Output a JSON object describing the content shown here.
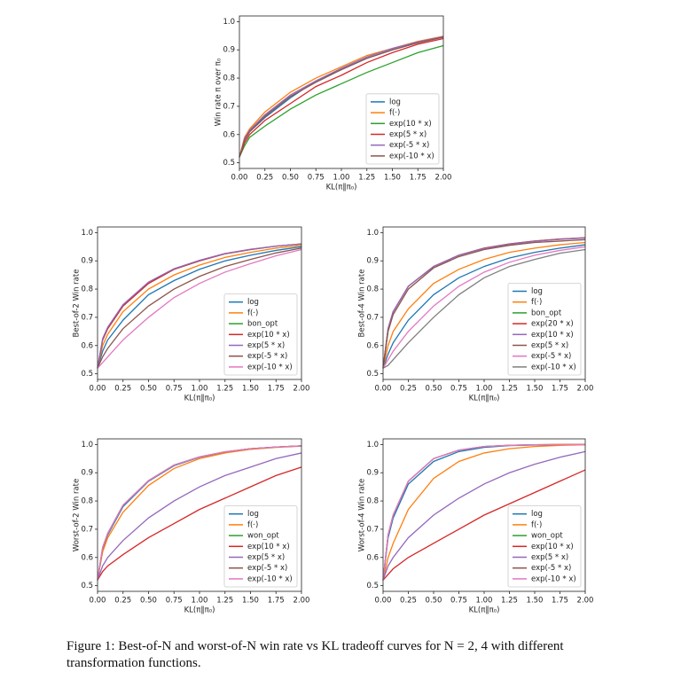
{
  "chart_data": [
    {
      "type": "line",
      "ylabel": "Win rate π over π₀",
      "xlabel": "KL(π‖π₀)",
      "x": [
        0,
        0.05,
        0.1,
        0.25,
        0.5,
        0.75,
        1.0,
        1.25,
        1.5,
        1.75,
        2.0
      ],
      "xlim": [
        0,
        2
      ],
      "ylim": [
        0.48,
        1.02
      ],
      "xticks": [
        {
          "value": 0,
          "label": "0.00"
        },
        {
          "value": 0.25,
          "label": "0.25"
        },
        {
          "value": 0.5,
          "label": "0.50"
        },
        {
          "value": 0.75,
          "label": "0.75"
        },
        {
          "value": 1,
          "label": "1.00"
        },
        {
          "value": 1.25,
          "label": "1.25"
        },
        {
          "value": 1.5,
          "label": "1.50"
        },
        {
          "value": 1.75,
          "label": "1.75"
        },
        {
          "value": 2,
          "label": "2.00"
        }
      ],
      "yticks": [
        0.5,
        0.6,
        0.7,
        0.8,
        0.9,
        {
          "value": 1,
          "label": "1.0"
        }
      ],
      "legend": "lower right",
      "series": [
        {
          "name": "log",
          "color": "#1f77b4",
          "values": [
            0.52,
            0.58,
            0.61,
            0.66,
            0.73,
            0.79,
            0.83,
            0.87,
            0.9,
            0.925,
            0.945
          ]
        },
        {
          "name": "f(·)",
          "color": "#ff7f0e",
          "values": [
            0.52,
            0.59,
            0.62,
            0.68,
            0.75,
            0.8,
            0.84,
            0.88,
            0.905,
            0.93,
            0.948
          ]
        },
        {
          "name": "exp(10 * x)",
          "color": "#2ca02c",
          "values": [
            0.52,
            0.56,
            0.59,
            0.63,
            0.69,
            0.74,
            0.78,
            0.82,
            0.855,
            0.89,
            0.915
          ]
        },
        {
          "name": "exp(5 * x)",
          "color": "#d62728",
          "values": [
            0.52,
            0.57,
            0.6,
            0.65,
            0.71,
            0.77,
            0.81,
            0.855,
            0.89,
            0.92,
            0.94
          ]
        },
        {
          "name": "exp(-5 * x)",
          "color": "#9467bd",
          "values": [
            0.52,
            0.585,
            0.615,
            0.67,
            0.74,
            0.79,
            0.835,
            0.875,
            0.905,
            0.928,
            0.947
          ]
        },
        {
          "name": "exp(-10 * x)",
          "color": "#8c564b",
          "values": [
            0.52,
            0.58,
            0.61,
            0.665,
            0.735,
            0.785,
            0.83,
            0.87,
            0.9,
            0.925,
            0.945
          ]
        }
      ]
    },
    {
      "type": "line",
      "ylabel": "Best-of-2 Win rate",
      "xlabel": "KL(π‖π₀)",
      "x": [
        0,
        0.05,
        0.1,
        0.25,
        0.5,
        0.75,
        1.0,
        1.25,
        1.5,
        1.75,
        2.0
      ],
      "xlim": [
        0,
        2
      ],
      "ylim": [
        0.48,
        1.02
      ],
      "xticks": [
        {
          "value": 0,
          "label": "0.00"
        },
        {
          "value": 0.25,
          "label": "0.25"
        },
        {
          "value": 0.5,
          "label": "0.50"
        },
        {
          "value": 0.75,
          "label": "0.75"
        },
        {
          "value": 1,
          "label": "1.00"
        },
        {
          "value": 1.25,
          "label": "1.25"
        },
        {
          "value": 1.5,
          "label": "1.50"
        },
        {
          "value": 1.75,
          "label": "1.75"
        },
        {
          "value": 2,
          "label": "2.00"
        }
      ],
      "yticks": [
        0.5,
        0.6,
        0.7,
        0.8,
        0.9,
        {
          "value": 1,
          "label": "1.0"
        }
      ],
      "legend": "lower right",
      "series": [
        {
          "name": "log",
          "color": "#1f77b4",
          "values": [
            0.52,
            0.58,
            0.62,
            0.69,
            0.78,
            0.83,
            0.87,
            0.9,
            0.92,
            0.937,
            0.95
          ]
        },
        {
          "name": "f(·)",
          "color": "#ff7f0e",
          "values": [
            0.52,
            0.6,
            0.64,
            0.72,
            0.8,
            0.85,
            0.885,
            0.912,
            0.93,
            0.945,
            0.955
          ]
        },
        {
          "name": "bon_opt",
          "color": "#2ca02c",
          "values": [
            0.52,
            0.62,
            0.66,
            0.74,
            0.82,
            0.87,
            0.9,
            0.925,
            0.94,
            0.952,
            0.96
          ]
        },
        {
          "name": "exp(10 * x)",
          "color": "#d62728",
          "values": [
            0.52,
            0.62,
            0.66,
            0.74,
            0.82,
            0.87,
            0.9,
            0.925,
            0.94,
            0.952,
            0.96
          ]
        },
        {
          "name": "exp(5 * x)",
          "color": "#9467bd",
          "values": [
            0.52,
            0.625,
            0.665,
            0.745,
            0.825,
            0.872,
            0.902,
            0.926,
            0.941,
            0.952,
            0.96
          ]
        },
        {
          "name": "exp(-5 * x)",
          "color": "#8c564b",
          "values": [
            0.52,
            0.56,
            0.59,
            0.66,
            0.74,
            0.8,
            0.845,
            0.88,
            0.905,
            0.928,
            0.945
          ]
        },
        {
          "name": "exp(-10 * x)",
          "color": "#e377c2",
          "values": [
            0.52,
            0.54,
            0.56,
            0.62,
            0.7,
            0.77,
            0.82,
            0.86,
            0.89,
            0.918,
            0.94
          ]
        }
      ]
    },
    {
      "type": "line",
      "ylabel": "Best-of-4 Win rate",
      "xlabel": "KL(π‖π₀)",
      "x": [
        0,
        0.05,
        0.1,
        0.25,
        0.5,
        0.75,
        1.0,
        1.25,
        1.5,
        1.75,
        2.0
      ],
      "xlim": [
        0,
        2
      ],
      "ylim": [
        0.48,
        1.02
      ],
      "xticks": [
        {
          "value": 0,
          "label": "0.00"
        },
        {
          "value": 0.25,
          "label": "0.25"
        },
        {
          "value": 0.5,
          "label": "0.50"
        },
        {
          "value": 0.75,
          "label": "0.75"
        },
        {
          "value": 1,
          "label": "1.00"
        },
        {
          "value": 1.25,
          "label": "1.25"
        },
        {
          "value": 1.5,
          "label": "1.50"
        },
        {
          "value": 1.75,
          "label": "1.75"
        },
        {
          "value": 2,
          "label": "2.00"
        }
      ],
      "yticks": [
        0.5,
        0.6,
        0.7,
        0.8,
        0.9,
        {
          "value": 1,
          "label": "1.0"
        }
      ],
      "legend": "lower right",
      "series": [
        {
          "name": "log",
          "color": "#1f77b4",
          "values": [
            0.52,
            0.57,
            0.61,
            0.69,
            0.78,
            0.84,
            0.88,
            0.91,
            0.93,
            0.945,
            0.957
          ]
        },
        {
          "name": "f(·)",
          "color": "#ff7f0e",
          "values": [
            0.52,
            0.6,
            0.65,
            0.73,
            0.82,
            0.87,
            0.905,
            0.93,
            0.945,
            0.957,
            0.965
          ]
        },
        {
          "name": "bon_opt",
          "color": "#2ca02c",
          "values": [
            0.52,
            0.66,
            0.72,
            0.81,
            0.88,
            0.92,
            0.945,
            0.96,
            0.97,
            0.977,
            0.982
          ]
        },
        {
          "name": "exp(20 * x)",
          "color": "#d62728",
          "values": [
            0.52,
            0.66,
            0.72,
            0.81,
            0.88,
            0.92,
            0.945,
            0.96,
            0.97,
            0.977,
            0.982
          ]
        },
        {
          "name": "exp(10 * x)",
          "color": "#9467bd",
          "values": [
            0.52,
            0.66,
            0.72,
            0.81,
            0.88,
            0.92,
            0.944,
            0.959,
            0.969,
            0.976,
            0.981
          ]
        },
        {
          "name": "exp(5 * x)",
          "color": "#8c564b",
          "values": [
            0.52,
            0.65,
            0.71,
            0.8,
            0.875,
            0.915,
            0.94,
            0.955,
            0.965,
            0.97,
            0.975
          ]
        },
        {
          "name": "exp(-5 * x)",
          "color": "#e377c2",
          "values": [
            0.52,
            0.55,
            0.58,
            0.65,
            0.74,
            0.81,
            0.86,
            0.895,
            0.92,
            0.937,
            0.95
          ]
        },
        {
          "name": "exp(-10 * x)",
          "color": "#7f7f7f",
          "values": [
            0.52,
            0.53,
            0.55,
            0.61,
            0.7,
            0.78,
            0.84,
            0.88,
            0.905,
            0.927,
            0.94
          ]
        }
      ]
    },
    {
      "type": "line",
      "ylabel": "Worst-of-2 Win rate",
      "xlabel": "KL(π‖π₀)",
      "x": [
        0,
        0.05,
        0.1,
        0.25,
        0.5,
        0.75,
        1.0,
        1.25,
        1.5,
        1.75,
        2.0
      ],
      "xlim": [
        0,
        2
      ],
      "ylim": [
        0.48,
        1.02
      ],
      "xticks": [
        {
          "value": 0,
          "label": "0.00"
        },
        {
          "value": 0.25,
          "label": "0.25"
        },
        {
          "value": 0.5,
          "label": "0.50"
        },
        {
          "value": 0.75,
          "label": "0.75"
        },
        {
          "value": 1,
          "label": "1.00"
        },
        {
          "value": 1.25,
          "label": "1.25"
        },
        {
          "value": 1.5,
          "label": "1.50"
        },
        {
          "value": 1.75,
          "label": "1.75"
        },
        {
          "value": 2,
          "label": "2.00"
        }
      ],
      "yticks": [
        0.5,
        0.6,
        0.7,
        0.8,
        0.9,
        {
          "value": 1,
          "label": "1.0"
        }
      ],
      "legend": "lower right",
      "series": [
        {
          "name": "log",
          "color": "#1f77b4",
          "values": [
            0.52,
            0.63,
            0.68,
            0.78,
            0.87,
            0.925,
            0.955,
            0.973,
            0.985,
            0.991,
            0.995
          ]
        },
        {
          "name": "f(·)",
          "color": "#ff7f0e",
          "values": [
            0.52,
            0.62,
            0.67,
            0.76,
            0.855,
            0.915,
            0.95,
            0.97,
            0.983,
            0.99,
            0.994
          ]
        },
        {
          "name": "won_opt",
          "color": "#2ca02c",
          "values": [
            0.52,
            0.635,
            0.685,
            0.785,
            0.872,
            0.927,
            0.956,
            0.974,
            0.985,
            0.991,
            0.995
          ]
        },
        {
          "name": "exp(10 * x)",
          "color": "#d62728",
          "values": [
            0.52,
            0.55,
            0.57,
            0.61,
            0.67,
            0.72,
            0.77,
            0.81,
            0.85,
            0.89,
            0.92
          ]
        },
        {
          "name": "exp(5 * x)",
          "color": "#9467bd",
          "values": [
            0.52,
            0.57,
            0.6,
            0.66,
            0.74,
            0.8,
            0.85,
            0.89,
            0.92,
            0.95,
            0.97
          ]
        },
        {
          "name": "exp(-5 * x)",
          "color": "#8c564b",
          "values": [
            0.52,
            0.635,
            0.685,
            0.785,
            0.872,
            0.927,
            0.956,
            0.974,
            0.985,
            0.991,
            0.995
          ]
        },
        {
          "name": "exp(-10 * x)",
          "color": "#e377c2",
          "values": [
            0.52,
            0.635,
            0.685,
            0.785,
            0.872,
            0.927,
            0.956,
            0.974,
            0.985,
            0.991,
            0.995
          ]
        }
      ]
    },
    {
      "type": "line",
      "ylabel": "Worst-of-4 Win rate",
      "xlabel": "KL(π‖π₀)",
      "x": [
        0,
        0.05,
        0.1,
        0.25,
        0.5,
        0.75,
        1.0,
        1.25,
        1.5,
        1.75,
        2.0
      ],
      "xlim": [
        0,
        2
      ],
      "ylim": [
        0.48,
        1.02
      ],
      "xticks": [
        {
          "value": 0,
          "label": "0.00"
        },
        {
          "value": 0.25,
          "label": "0.25"
        },
        {
          "value": 0.5,
          "label": "0.50"
        },
        {
          "value": 0.75,
          "label": "0.75"
        },
        {
          "value": 1,
          "label": "1.00"
        },
        {
          "value": 1.25,
          "label": "1.25"
        },
        {
          "value": 1.5,
          "label": "1.50"
        },
        {
          "value": 1.75,
          "label": "1.75"
        },
        {
          "value": 2,
          "label": "2.00"
        }
      ],
      "yticks": [
        0.5,
        0.6,
        0.7,
        0.8,
        0.9,
        {
          "value": 1,
          "label": "1.0"
        }
      ],
      "legend": "lower right",
      "series": [
        {
          "name": "log",
          "color": "#1f77b4",
          "values": [
            0.52,
            0.67,
            0.74,
            0.86,
            0.94,
            0.975,
            0.99,
            0.996,
            0.998,
            0.999,
            1.0
          ]
        },
        {
          "name": "f(·)",
          "color": "#ff7f0e",
          "values": [
            0.52,
            0.6,
            0.65,
            0.77,
            0.88,
            0.94,
            0.97,
            0.985,
            0.993,
            0.997,
            0.999
          ]
        },
        {
          "name": "won_opt",
          "color": "#2ca02c",
          "values": [
            0.52,
            0.68,
            0.75,
            0.87,
            0.95,
            0.98,
            0.993,
            0.997,
            0.999,
            1.0,
            1.0
          ]
        },
        {
          "name": "exp(10 * x)",
          "color": "#d62728",
          "values": [
            0.52,
            0.54,
            0.56,
            0.6,
            0.65,
            0.7,
            0.75,
            0.79,
            0.83,
            0.87,
            0.91
          ]
        },
        {
          "name": "exp(5 * x)",
          "color": "#9467bd",
          "values": [
            0.52,
            0.57,
            0.6,
            0.67,
            0.75,
            0.81,
            0.86,
            0.9,
            0.93,
            0.955,
            0.975
          ]
        },
        {
          "name": "exp(-5 * x)",
          "color": "#8c564b",
          "values": [
            0.52,
            0.68,
            0.75,
            0.87,
            0.95,
            0.98,
            0.993,
            0.997,
            0.999,
            1.0,
            1.0
          ]
        },
        {
          "name": "exp(-10 * x)",
          "color": "#e377c2",
          "values": [
            0.52,
            0.68,
            0.75,
            0.87,
            0.95,
            0.98,
            0.993,
            0.997,
            0.999,
            1.0,
            1.0
          ]
        }
      ]
    }
  ],
  "caption": "Figure 1: Best-of-N and worst-of-N win rate vs KL tradeoff curves for N = 2, 4 with different transformation functions."
}
